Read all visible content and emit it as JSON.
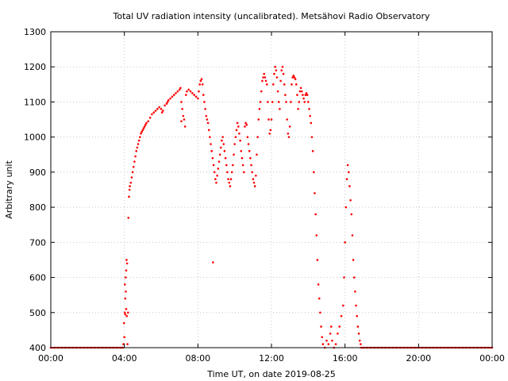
{
  "chart_data": {
    "type": "scatter",
    "title": "Total UV radiation intensity (uncalibrated). Metsähovi Radio Observatory",
    "xlabel": "Time UT, on date 2019-08-25",
    "ylabel": "Arbitrary unit",
    "xlim": [
      0,
      24
    ],
    "ylim": [
      400,
      1300
    ],
    "x_tick_labels": [
      "00:00",
      "04:00",
      "08:00",
      "12:00",
      "16:00",
      "20:00",
      "00:00"
    ],
    "y_ticks": [
      400,
      500,
      600,
      700,
      800,
      900,
      1000,
      1100,
      1200,
      1300
    ],
    "grid": true,
    "marker_color": "#ff0000",
    "x_unit": "hours UT",
    "series": [
      {
        "values": [
          [
            0.0,
            400
          ],
          [
            0.2,
            400
          ],
          [
            0.4,
            400
          ],
          [
            0.6,
            400
          ],
          [
            0.8,
            400
          ],
          [
            1.0,
            400
          ],
          [
            1.2,
            400
          ],
          [
            1.4,
            400
          ],
          [
            1.6,
            400
          ],
          [
            1.8,
            400
          ],
          [
            2.0,
            400
          ],
          [
            2.2,
            400
          ],
          [
            2.4,
            400
          ],
          [
            2.6,
            400
          ],
          [
            2.8,
            400
          ],
          [
            3.0,
            400
          ],
          [
            3.2,
            400
          ],
          [
            3.4,
            400
          ],
          [
            3.6,
            400
          ],
          [
            3.8,
            400
          ],
          [
            3.9,
            400
          ],
          [
            3.95,
            410
          ],
          [
            4.0,
            430
          ],
          [
            3.98,
            470
          ],
          [
            4.02,
            500
          ],
          [
            4.05,
            540
          ],
          [
            4.03,
            580
          ],
          [
            4.07,
            600
          ],
          [
            4.1,
            620
          ],
          [
            4.12,
            650
          ],
          [
            4.15,
            640
          ],
          [
            4.08,
            560
          ],
          [
            4.1,
            510
          ],
          [
            4.13,
            490
          ],
          [
            4.05,
            495
          ],
          [
            4.17,
            410
          ],
          [
            4.2,
            500
          ],
          [
            4.22,
            770
          ],
          [
            4.25,
            830
          ],
          [
            4.28,
            850
          ],
          [
            4.3,
            860
          ],
          [
            4.35,
            870
          ],
          [
            4.4,
            885
          ],
          [
            4.45,
            900
          ],
          [
            4.5,
            915
          ],
          [
            4.55,
            930
          ],
          [
            4.6,
            945
          ],
          [
            4.65,
            960
          ],
          [
            4.7,
            970
          ],
          [
            4.75,
            980
          ],
          [
            4.8,
            990
          ],
          [
            4.85,
            1000
          ],
          [
            4.9,
            1010
          ],
          [
            4.95,
            1015
          ],
          [
            5.0,
            1020
          ],
          [
            5.05,
            1025
          ],
          [
            5.1,
            1030
          ],
          [
            5.15,
            1035
          ],
          [
            5.2,
            1040
          ],
          [
            5.3,
            1045
          ],
          [
            5.4,
            1055
          ],
          [
            5.5,
            1065
          ],
          [
            5.6,
            1070
          ],
          [
            5.7,
            1075
          ],
          [
            5.8,
            1080
          ],
          [
            5.9,
            1085
          ],
          [
            6.0,
            1080
          ],
          [
            6.05,
            1070
          ],
          [
            6.1,
            1075
          ],
          [
            6.2,
            1090
          ],
          [
            6.3,
            1095
          ],
          [
            6.35,
            1100
          ],
          [
            6.4,
            1105
          ],
          [
            6.5,
            1110
          ],
          [
            6.6,
            1115
          ],
          [
            6.7,
            1120
          ],
          [
            6.8,
            1125
          ],
          [
            6.9,
            1130
          ],
          [
            7.0,
            1135
          ],
          [
            7.05,
            1140
          ],
          [
            7.1,
            1100
          ],
          [
            7.15,
            1080
          ],
          [
            7.2,
            1060
          ],
          [
            7.25,
            1050
          ],
          [
            7.3,
            1030
          ],
          [
            7.1,
            1045
          ],
          [
            7.35,
            1120
          ],
          [
            7.4,
            1130
          ],
          [
            7.5,
            1135
          ],
          [
            7.6,
            1130
          ],
          [
            7.7,
            1125
          ],
          [
            7.8,
            1120
          ],
          [
            7.9,
            1115
          ],
          [
            8.0,
            1110
          ],
          [
            8.05,
            1130
          ],
          [
            8.1,
            1150
          ],
          [
            8.15,
            1160
          ],
          [
            8.2,
            1165
          ],
          [
            8.25,
            1150
          ],
          [
            8.3,
            1120
          ],
          [
            8.35,
            1100
          ],
          [
            8.4,
            1080
          ],
          [
            8.45,
            1060
          ],
          [
            8.5,
            1050
          ],
          [
            8.55,
            1040
          ],
          [
            8.6,
            1020
          ],
          [
            8.65,
            1000
          ],
          [
            8.7,
            980
          ],
          [
            8.75,
            960
          ],
          [
            8.8,
            940
          ],
          [
            8.85,
            920
          ],
          [
            8.9,
            900
          ],
          [
            8.95,
            880
          ],
          [
            9.0,
            870
          ],
          [
            9.05,
            890
          ],
          [
            9.1,
            910
          ],
          [
            8.82,
            643
          ],
          [
            9.15,
            930
          ],
          [
            9.2,
            950
          ],
          [
            9.25,
            970
          ],
          [
            9.3,
            990
          ],
          [
            9.35,
            1000
          ],
          [
            9.4,
            980
          ],
          [
            9.45,
            960
          ],
          [
            9.5,
            940
          ],
          [
            9.55,
            920
          ],
          [
            9.6,
            900
          ],
          [
            9.65,
            880
          ],
          [
            9.7,
            870
          ],
          [
            9.75,
            860
          ],
          [
            9.8,
            880
          ],
          [
            9.85,
            900
          ],
          [
            9.9,
            920
          ],
          [
            9.95,
            950
          ],
          [
            10.0,
            980
          ],
          [
            10.05,
            1000
          ],
          [
            10.1,
            1020
          ],
          [
            10.15,
            1040
          ],
          [
            10.2,
            1030
          ],
          [
            10.25,
            1010
          ],
          [
            10.3,
            990
          ],
          [
            10.35,
            960
          ],
          [
            10.4,
            940
          ],
          [
            10.45,
            920
          ],
          [
            10.5,
            900
          ],
          [
            10.55,
            1030
          ],
          [
            10.6,
            1040
          ],
          [
            10.65,
            1035
          ],
          [
            10.7,
            1000
          ],
          [
            10.75,
            980
          ],
          [
            10.8,
            960
          ],
          [
            10.85,
            940
          ],
          [
            10.9,
            920
          ],
          [
            10.95,
            900
          ],
          [
            11.0,
            880
          ],
          [
            11.05,
            870
          ],
          [
            11.1,
            860
          ],
          [
            11.15,
            890
          ],
          [
            11.2,
            950
          ],
          [
            11.25,
            1000
          ],
          [
            11.3,
            1050
          ],
          [
            11.35,
            1080
          ],
          [
            11.4,
            1100
          ],
          [
            11.45,
            1130
          ],
          [
            11.5,
            1160
          ],
          [
            11.55,
            1170
          ],
          [
            11.6,
            1180
          ],
          [
            11.65,
            1170
          ],
          [
            11.7,
            1160
          ],
          [
            11.75,
            1150
          ],
          [
            11.8,
            1100
          ],
          [
            11.85,
            1050
          ],
          [
            11.9,
            1010
          ],
          [
            11.95,
            1020
          ],
          [
            12.0,
            1050
          ],
          [
            12.05,
            1100
          ],
          [
            12.1,
            1150
          ],
          [
            12.15,
            1180
          ],
          [
            12.2,
            1200
          ],
          [
            12.25,
            1190
          ],
          [
            12.3,
            1170
          ],
          [
            12.35,
            1130
          ],
          [
            12.4,
            1100
          ],
          [
            12.45,
            1080
          ],
          [
            12.5,
            1160
          ],
          [
            12.55,
            1190
          ],
          [
            12.6,
            1200
          ],
          [
            12.65,
            1180
          ],
          [
            12.7,
            1150
          ],
          [
            12.75,
            1120
          ],
          [
            12.8,
            1100
          ],
          [
            12.85,
            1050
          ],
          [
            12.9,
            1010
          ],
          [
            12.95,
            1000
          ],
          [
            13.0,
            1030
          ],
          [
            13.05,
            1100
          ],
          [
            13.1,
            1150
          ],
          [
            13.15,
            1170
          ],
          [
            13.2,
            1175
          ],
          [
            13.25,
            1170
          ],
          [
            13.3,
            1165
          ],
          [
            13.35,
            1150
          ],
          [
            13.4,
            1120
          ],
          [
            13.45,
            1080
          ],
          [
            13.5,
            1100
          ],
          [
            13.55,
            1130
          ],
          [
            13.6,
            1140
          ],
          [
            13.65,
            1130
          ],
          [
            13.7,
            1120
          ],
          [
            13.75,
            1110
          ],
          [
            13.8,
            1100
          ],
          [
            13.85,
            1120
          ],
          [
            13.9,
            1125
          ],
          [
            13.95,
            1120
          ],
          [
            14.0,
            1100
          ],
          [
            14.05,
            1080
          ],
          [
            14.1,
            1060
          ],
          [
            14.15,
            1040
          ],
          [
            14.2,
            1000
          ],
          [
            14.25,
            960
          ],
          [
            14.3,
            900
          ],
          [
            14.35,
            840
          ],
          [
            14.4,
            780
          ],
          [
            14.45,
            720
          ],
          [
            14.5,
            650
          ],
          [
            14.55,
            580
          ],
          [
            14.6,
            540
          ],
          [
            14.65,
            500
          ],
          [
            14.7,
            460
          ],
          [
            14.75,
            430
          ],
          [
            14.8,
            410
          ],
          [
            14.9,
            400
          ],
          [
            15.0,
            420
          ],
          [
            15.1,
            410
          ],
          [
            15.2,
            440
          ],
          [
            15.25,
            460
          ],
          [
            15.3,
            420
          ],
          [
            15.4,
            400
          ],
          [
            15.5,
            410
          ],
          [
            15.6,
            440
          ],
          [
            15.7,
            460
          ],
          [
            15.8,
            490
          ],
          [
            15.9,
            520
          ],
          [
            15.95,
            600
          ],
          [
            16.0,
            700
          ],
          [
            16.05,
            800
          ],
          [
            16.1,
            880
          ],
          [
            16.15,
            920
          ],
          [
            16.2,
            900
          ],
          [
            16.25,
            860
          ],
          [
            16.3,
            820
          ],
          [
            16.35,
            780
          ],
          [
            16.4,
            720
          ],
          [
            16.45,
            650
          ],
          [
            16.5,
            600
          ],
          [
            16.55,
            560
          ],
          [
            16.6,
            520
          ],
          [
            16.65,
            490
          ],
          [
            16.7,
            460
          ],
          [
            16.75,
            440
          ],
          [
            16.8,
            420
          ],
          [
            16.85,
            410
          ],
          [
            16.9,
            400
          ],
          [
            17.0,
            400
          ],
          [
            17.2,
            400
          ],
          [
            17.4,
            400
          ],
          [
            17.6,
            400
          ],
          [
            17.8,
            400
          ],
          [
            18.0,
            400
          ],
          [
            18.2,
            400
          ],
          [
            18.4,
            400
          ],
          [
            18.6,
            400
          ],
          [
            18.8,
            400
          ],
          [
            19.0,
            400
          ],
          [
            19.2,
            400
          ],
          [
            19.4,
            400
          ],
          [
            19.6,
            400
          ],
          [
            19.8,
            400
          ],
          [
            20.0,
            400
          ],
          [
            20.2,
            400
          ],
          [
            20.4,
            400
          ],
          [
            20.6,
            400
          ],
          [
            20.8,
            400
          ],
          [
            21.0,
            400
          ],
          [
            21.2,
            400
          ],
          [
            21.4,
            400
          ],
          [
            21.6,
            400
          ],
          [
            21.8,
            400
          ],
          [
            22.0,
            400
          ],
          [
            22.2,
            400
          ],
          [
            22.4,
            400
          ],
          [
            22.6,
            400
          ],
          [
            22.8,
            400
          ],
          [
            23.0,
            400
          ],
          [
            23.2,
            400
          ],
          [
            23.4,
            400
          ],
          [
            23.6,
            400
          ],
          [
            23.8,
            400
          ],
          [
            24.0,
            400
          ]
        ]
      }
    ]
  }
}
